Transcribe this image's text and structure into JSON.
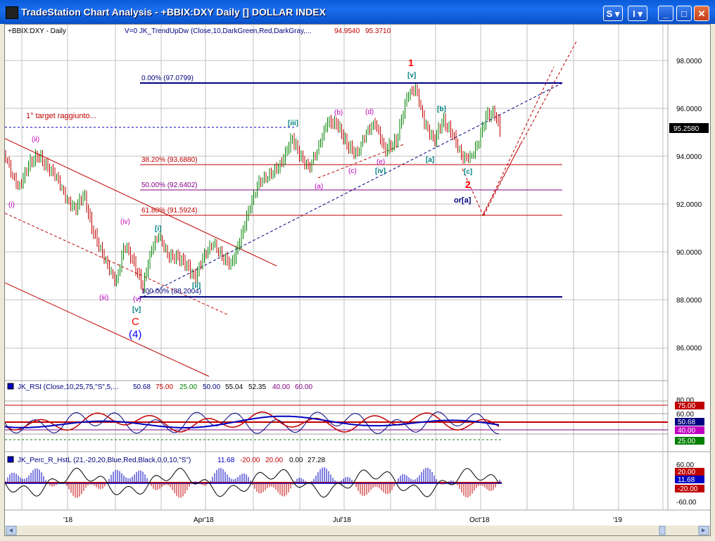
{
  "window": {
    "title": "TradeStation Chart Analysis - +BBIX:DXY Daily [] DOLLAR INDEX",
    "buttons": {
      "s_label": "S",
      "i_label": "I",
      "max_label": "□",
      "min_label": "_",
      "close_label": "✕"
    }
  },
  "price_panel": {
    "symbol_label": "+BBIX:DXY - Daily",
    "indicator_label": "V=0  JK_TrendUpDw (Close,10,DarkGreen,Red,DarkGray,...",
    "indicator_values": [
      "94.9540",
      "95.3710"
    ],
    "price_ticks": [
      "98.0000",
      "96.0000",
      "94.0000",
      "92.0000",
      "90.0000",
      "88.0000",
      "86.0000"
    ],
    "last_price": "95.2580",
    "fib_levels": [
      {
        "label": "0.00% (97.0799)",
        "color": "#000080"
      },
      {
        "label": "38.20% (93.6880)",
        "color": "#c00000"
      },
      {
        "label": "50.00% (92.6402)",
        "color": "#800080"
      },
      {
        "label": "61.80% (91.5924)",
        "color": "#c00000"
      },
      {
        "label": "100.00% (88.2004)",
        "color": "#000080"
      }
    ],
    "annotation": "1° target raggiunto...",
    "wave_labels": {
      "i_low": "(i)",
      "ii": "(ii)",
      "iii": "(iii)",
      "iv": "(iv)",
      "v_low": "(v)",
      "v_box": "[v]",
      "C": "C",
      "four": "(4)",
      "i_box": "[i]",
      "ii_box": "[ii]",
      "iii_box": "[iii]",
      "a_small": "(a)",
      "b_small": "(b)",
      "c_small": "(c)",
      "d_small": "(d)",
      "e_small": "(e)",
      "iv_box": "[iv]",
      "one": "1",
      "v_top": "[v]",
      "a_box": "[a]",
      "b_box": "[b]",
      "c_box": "[c]",
      "two": "2",
      "or_a": "or[a]"
    }
  },
  "rsi_panel": {
    "label": "JK_RSI (Close,10,25,75,\"S\",5,...",
    "values": [
      "50.68",
      "75.00",
      "25.00",
      "50.00",
      "55.04",
      "52.35",
      "40.00",
      "60.00"
    ],
    "ticks": [
      "80.00",
      "75.00",
      "60.00",
      "50.68",
      "40.00",
      "25.00"
    ]
  },
  "percr_panel": {
    "label": "JK_Perc_R_HstL (21,-20,20,Blue,Red,Black,0,0,10,\"S\")",
    "values": [
      "11.68",
      "-20.00",
      "20.00",
      "0.00",
      "27.28"
    ],
    "ticks": [
      "60.00",
      "20.00",
      "11.68",
      "-20.00",
      "-60.00"
    ]
  },
  "time_axis": {
    "labels": [
      "'18",
      "Apr'18",
      "Jul'18",
      "Oct'18",
      "'19"
    ]
  },
  "colors": {
    "up": "#008000",
    "down": "#c00000",
    "fib_blue": "#000080",
    "wave_magenta": "#c000c0",
    "wave_teal": "#008080"
  }
}
